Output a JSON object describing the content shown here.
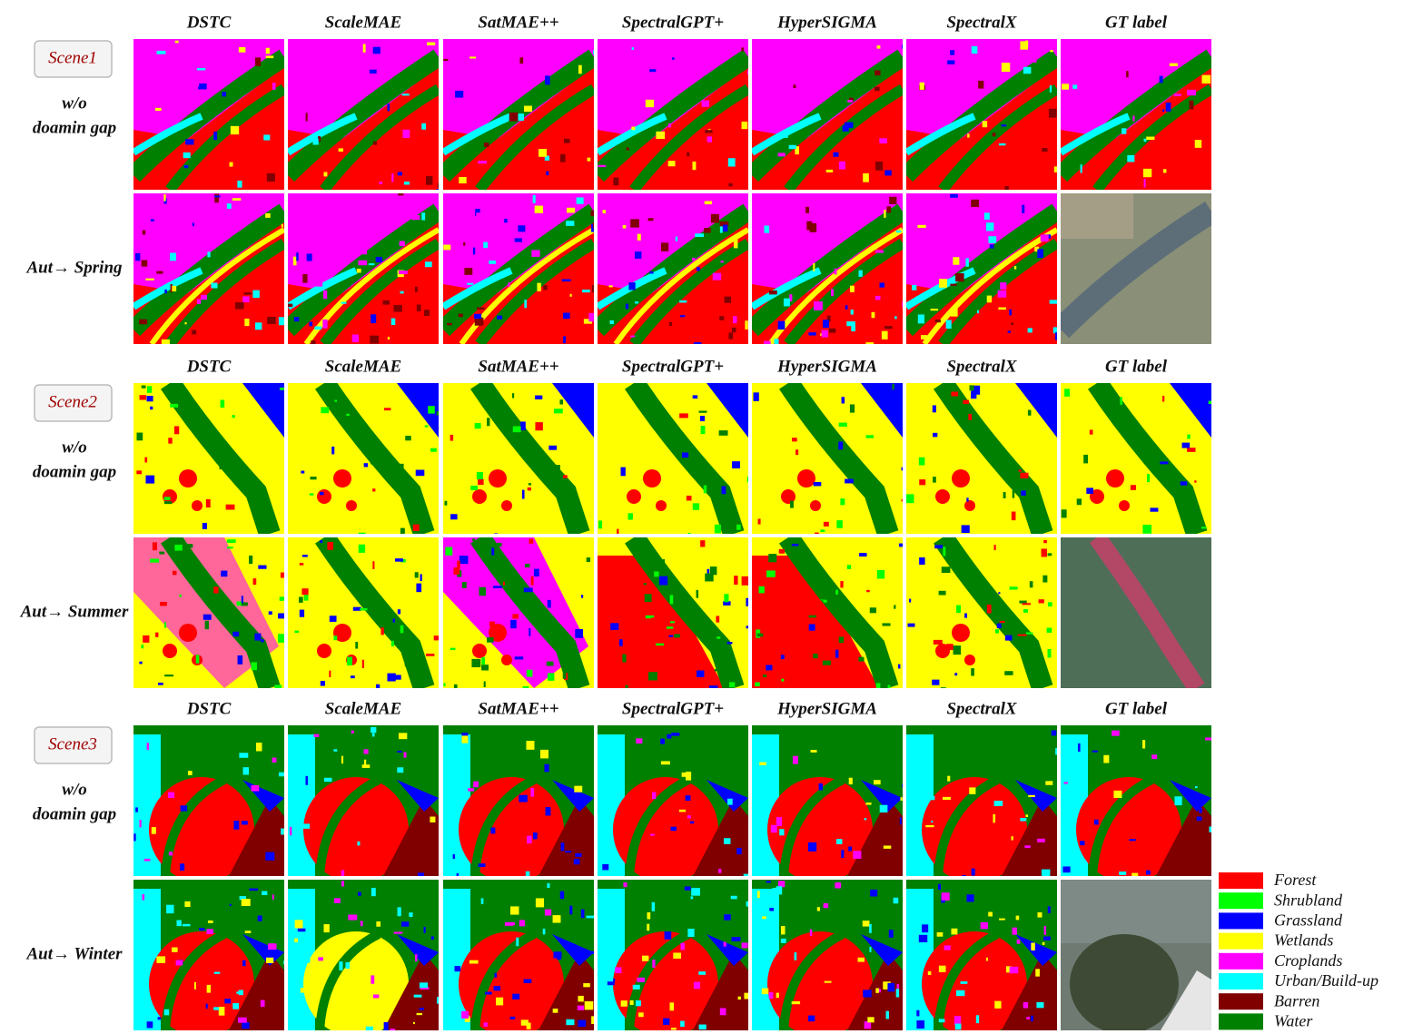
{
  "scenes": [
    {
      "label": "Scene1",
      "columns": [
        "DSTC",
        "ScaleMAE",
        "SatMAE++",
        "SpectralGPT+",
        "HyperSIGMA",
        "SpectralX",
        "GT label"
      ],
      "rows": [
        [
          "w/o",
          "doamin gap"
        ],
        [
          "Aut→ Spring"
        ]
      ]
    },
    {
      "label": "Scene2",
      "columns": [
        "DSTC",
        "ScaleMAE",
        "SatMAE++",
        "SpectralGPT+",
        "HyperSIGMA",
        "SpectralX",
        "GT label"
      ],
      "rows": [
        [
          "w/o",
          "doamin gap"
        ],
        [
          "Aut→ Summer"
        ]
      ]
    },
    {
      "label": "Scene3",
      "columns": [
        "DSTC",
        "ScaleMAE",
        "SatMAE++",
        "SpectralGPT+",
        "HyperSIGMA",
        "SpectralX",
        "GT label"
      ],
      "rows": [
        [
          "w/o",
          "doamin gap"
        ],
        [
          "Aut→ Winter"
        ]
      ]
    }
  ],
  "legend": [
    {
      "name": "Forest",
      "color": "#ff0000"
    },
    {
      "name": "Shrubland",
      "color": "#00ff00"
    },
    {
      "name": "Grassland",
      "color": "#0000ff"
    },
    {
      "name": "Wetlands",
      "color": "#ffff00"
    },
    {
      "name": "Croplands",
      "color": "#ff00ff"
    },
    {
      "name": "Urban/Build-up",
      "color": "#00ffff"
    },
    {
      "name": "Barren",
      "color": "#800000"
    },
    {
      "name": "Water",
      "color": "#008000"
    }
  ]
}
